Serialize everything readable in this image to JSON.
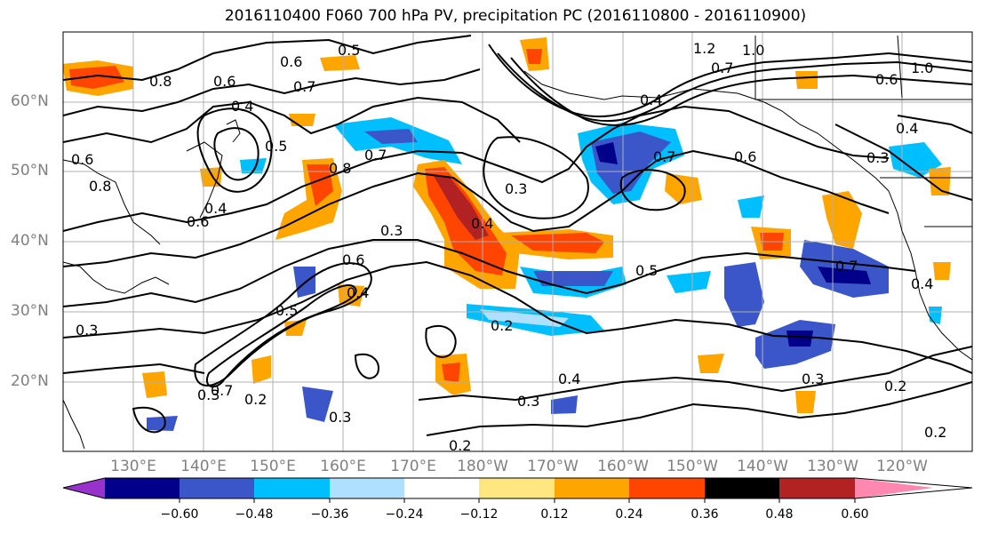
{
  "title": "2016110400 F060 700 hPa PV, precipitation PC (2016110800 - 2016110900)",
  "lat_labels": [
    "60°N",
    "50°N",
    "40°N",
    "30°N",
    "20°N"
  ],
  "lon_labels": [
    "130°E",
    "140°E",
    "150°E",
    "160°E",
    "170°E",
    "180°W",
    "170°W",
    "160°W",
    "150°W",
    "140°W",
    "130°W",
    "120°W"
  ],
  "colorbar": {
    "ticks": [
      "−0.60",
      "−0.48",
      "−0.36",
      "−0.24",
      "−0.12",
      "0.12",
      "0.24",
      "0.36",
      "0.48",
      "0.60"
    ],
    "colors": [
      "#9932cc",
      "#00008b",
      "#3a56c8",
      "#00bfff",
      "#b0e0ff",
      "#ffffff",
      "#ffe680",
      "#ffa500",
      "#ff4500",
      "#b22222",
      "#ff88b0"
    ]
  },
  "contour_labels": [
    "0.8",
    "0.5",
    "0.6",
    "0.7",
    "0.4",
    "0.6",
    "0.5",
    "0.8",
    "0.7",
    "1.2",
    "1.0",
    "0.7",
    "0.6",
    "1.0",
    "0.4",
    "0.7",
    "0.6",
    "0.3",
    "0.4",
    "0.3",
    "0.4",
    "0.3",
    "0.6",
    "0.5",
    "0.4",
    "0.2",
    "0.5",
    "0.3",
    "0.4",
    "0.3",
    "0.2",
    "0.3",
    "0.2",
    "0.2",
    "0.3",
    "0.7",
    "0.3",
    "0.2",
    "0.6",
    "0.4",
    "0.6",
    "0.4",
    "0.7",
    "0.8"
  ],
  "colors": {
    "axis_label": "#808080",
    "grid": "#b0b0b0"
  }
}
